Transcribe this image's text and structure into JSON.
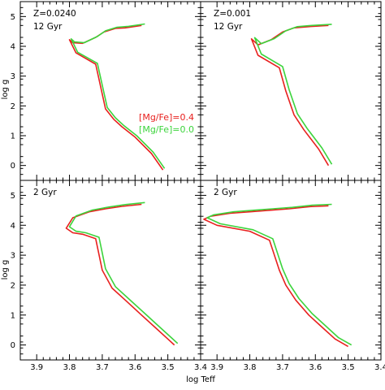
{
  "figure": {
    "xlabel": "log Teff",
    "ylabel": "log g"
  },
  "colors": {
    "mgfe_04": "#e8201e",
    "mgfe_00": "#3cd43c",
    "frame": "#000000"
  },
  "legend": [
    {
      "label": "[Mg/Fe]=0.4",
      "color": "#e8201e"
    },
    {
      "label": "[Mg/Fe]=0.0",
      "color": "#3cd43c"
    }
  ],
  "chart_data": [
    {
      "type": "line",
      "panel": "top-left",
      "labels": [
        "Z=0.0240",
        "12 Gyr"
      ],
      "xlim": [
        3.95,
        3.4
      ],
      "ylim": [
        5.5,
        -0.5
      ],
      "xticks": [
        3.9,
        3.8,
        3.7,
        3.6,
        3.5,
        3.4
      ],
      "yticks": [
        0,
        1,
        2,
        3,
        4,
        5
      ],
      "grid": false,
      "legend_position": "middle-right",
      "series": [
        {
          "name": "[Mg/Fe]=0.4",
          "x": [
            3.58,
            3.63,
            3.66,
            3.695,
            3.72,
            3.76,
            3.79,
            3.8,
            3.78,
            3.72,
            3.69,
            3.665,
            3.64,
            3.6,
            3.55,
            3.515
          ],
          "y": [
            4.7,
            4.62,
            4.6,
            4.48,
            4.3,
            4.1,
            4.12,
            4.22,
            3.78,
            3.4,
            1.9,
            1.55,
            1.3,
            0.95,
            0.4,
            -0.15
          ]
        },
        {
          "name": "[Mg/Fe]=0.0",
          "x": [
            3.57,
            3.62,
            3.655,
            3.69,
            3.715,
            3.755,
            3.785,
            3.795,
            3.775,
            3.715,
            3.685,
            3.66,
            3.635,
            3.595,
            3.545,
            3.51
          ],
          "y": [
            4.75,
            4.67,
            4.64,
            4.52,
            4.33,
            4.12,
            4.15,
            4.25,
            3.8,
            3.43,
            1.95,
            1.6,
            1.35,
            1.0,
            0.45,
            -0.1
          ]
        }
      ]
    },
    {
      "type": "line",
      "panel": "top-right",
      "labels": [
        "Z=0.001",
        "12 Gyr"
      ],
      "xlim": [
        3.95,
        3.4
      ],
      "ylim": [
        5.5,
        -0.5
      ],
      "xticks": [
        3.9,
        3.8,
        3.7,
        3.6,
        3.5,
        3.4
      ],
      "yticks": [
        0,
        1,
        2,
        3,
        4,
        5
      ],
      "grid": false,
      "series": [
        {
          "name": "[Mg/Fe]=0.4",
          "x": [
            3.56,
            3.62,
            3.665,
            3.7,
            3.735,
            3.775,
            3.795,
            3.775,
            3.71,
            3.69,
            3.665,
            3.635,
            3.59,
            3.56
          ],
          "y": [
            4.7,
            4.66,
            4.62,
            4.48,
            4.22,
            4.05,
            4.25,
            3.7,
            3.28,
            2.5,
            1.7,
            1.2,
            0.55,
            0.0
          ]
        },
        {
          "name": "[Mg/Fe]=0.0",
          "x": [
            3.55,
            3.61,
            3.655,
            3.69,
            3.725,
            3.765,
            3.785,
            3.765,
            3.7,
            3.68,
            3.655,
            3.625,
            3.58,
            3.55
          ],
          "y": [
            4.74,
            4.7,
            4.66,
            4.52,
            4.26,
            4.09,
            4.29,
            3.74,
            3.32,
            2.54,
            1.74,
            1.24,
            0.59,
            0.04
          ]
        }
      ]
    },
    {
      "type": "line",
      "panel": "bottom-left",
      "labels": [
        "2 Gyr"
      ],
      "xlim": [
        3.95,
        3.4
      ],
      "ylim": [
        5.5,
        -0.5
      ],
      "xticks": [
        3.9,
        3.8,
        3.7,
        3.6,
        3.5,
        3.4
      ],
      "yticks": [
        0,
        1,
        2,
        3,
        4,
        5
      ],
      "grid": false,
      "series": [
        {
          "name": "[Mg/Fe]=0.4",
          "x": [
            3.58,
            3.64,
            3.69,
            3.74,
            3.79,
            3.81,
            3.79,
            3.76,
            3.72,
            3.7,
            3.67,
            3.63,
            3.58,
            3.54,
            3.5,
            3.48
          ],
          "y": [
            4.7,
            4.63,
            4.55,
            4.45,
            4.25,
            3.9,
            3.75,
            3.7,
            3.55,
            2.5,
            1.9,
            1.5,
            1.0,
            0.6,
            0.2,
            0.0
          ]
        },
        {
          "name": "[Mg/Fe]=0.0",
          "x": [
            3.57,
            3.63,
            3.68,
            3.73,
            3.78,
            3.8,
            3.78,
            3.75,
            3.71,
            3.69,
            3.66,
            3.62,
            3.57,
            3.53,
            3.49,
            3.47
          ],
          "y": [
            4.76,
            4.69,
            4.61,
            4.51,
            4.31,
            3.95,
            3.8,
            3.75,
            3.6,
            2.55,
            1.95,
            1.55,
            1.05,
            0.65,
            0.25,
            0.05
          ]
        }
      ]
    },
    {
      "type": "line",
      "panel": "bottom-right",
      "labels": [
        "2 Gyr"
      ],
      "xlim": [
        3.95,
        3.4
      ],
      "ylim": [
        5.5,
        -0.5
      ],
      "xticks": [
        3.9,
        3.8,
        3.7,
        3.6,
        3.5,
        3.4
      ],
      "yticks": [
        0,
        1,
        2,
        3,
        4,
        5
      ],
      "grid": false,
      "series": [
        {
          "name": "[Mg/Fe]=0.4",
          "x": [
            3.56,
            3.62,
            3.68,
            3.74,
            3.8,
            3.86,
            3.92,
            3.94,
            3.9,
            3.8,
            3.74,
            3.71,
            3.69,
            3.66,
            3.62,
            3.58,
            3.54,
            3.5
          ],
          "y": [
            4.65,
            4.62,
            4.55,
            4.5,
            4.45,
            4.4,
            4.3,
            4.2,
            4.0,
            3.8,
            3.5,
            2.5,
            2.0,
            1.5,
            1.0,
            0.6,
            0.2,
            -0.05
          ]
        },
        {
          "name": "[Mg/Fe]=0.0",
          "x": [
            3.55,
            3.61,
            3.67,
            3.73,
            3.79,
            3.85,
            3.91,
            3.93,
            3.89,
            3.79,
            3.73,
            3.7,
            3.68,
            3.65,
            3.61,
            3.57,
            3.53,
            3.49
          ],
          "y": [
            4.7,
            4.67,
            4.6,
            4.55,
            4.5,
            4.45,
            4.35,
            4.25,
            4.05,
            3.85,
            3.55,
            2.55,
            2.05,
            1.55,
            1.05,
            0.65,
            0.25,
            0.0
          ]
        }
      ]
    }
  ]
}
